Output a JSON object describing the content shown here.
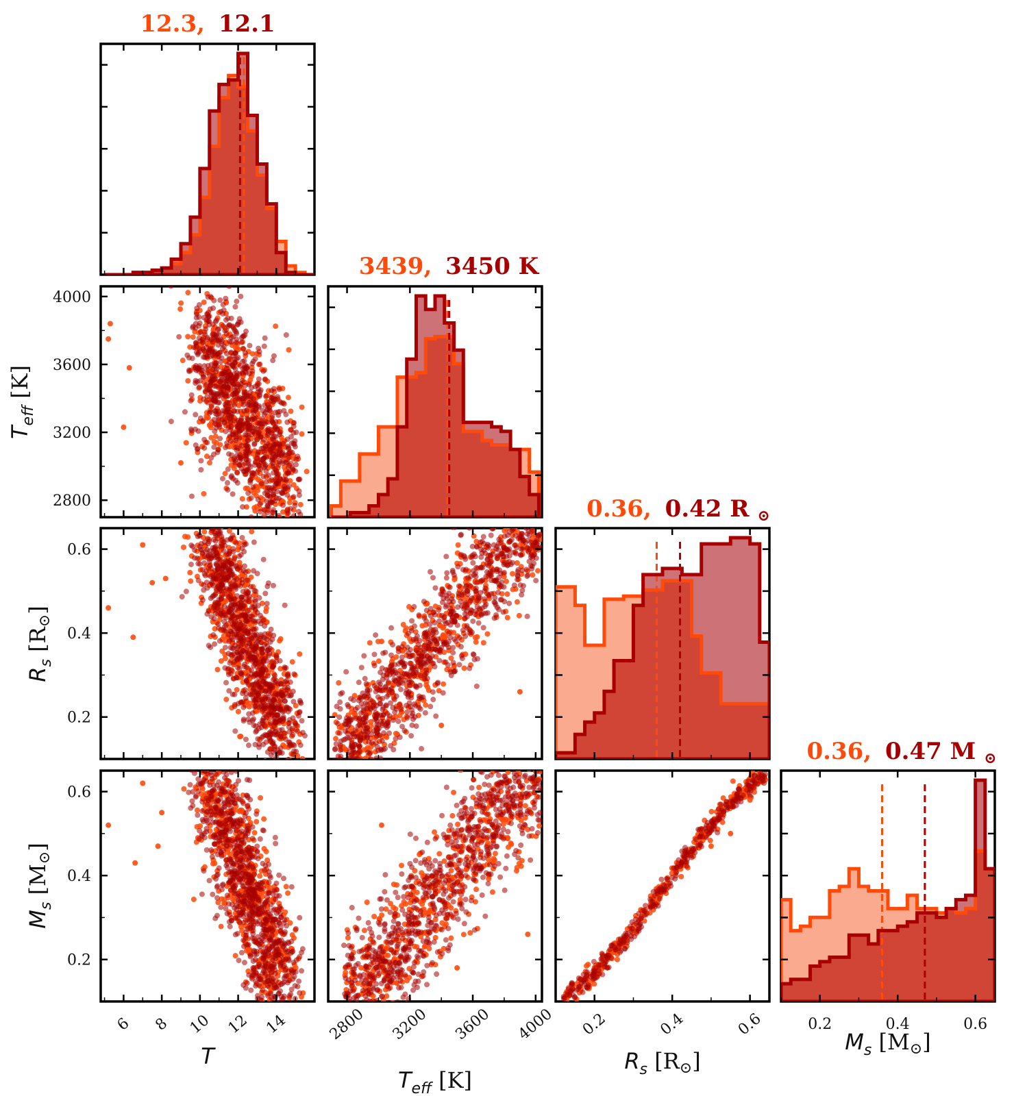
{
  "colors": {
    "series_a": "#ff4a0a",
    "series_a_fill": "#f9a283",
    "series_b": "#a80000",
    "series_b_fill": "#c86368",
    "overlap_fill": "#d04535",
    "frame": "#000000"
  },
  "chart_data": [
    {
      "type": "histogram",
      "panel": "T-hist",
      "title_a": "12.3,",
      "title_b": "12.1",
      "xlim": [
        4.8,
        16.0
      ],
      "xticks": [
        6,
        8,
        10,
        12,
        14
      ],
      "bin_edges": [
        5.0,
        5.5,
        6.0,
        6.5,
        7.0,
        7.5,
        8.0,
        8.5,
        9.0,
        9.5,
        10.0,
        10.5,
        11.0,
        11.5,
        12.0,
        12.5,
        13.0,
        13.5,
        14.0,
        14.5,
        15.0,
        15.5,
        16.0
      ],
      "series": [
        {
          "name": "a",
          "median": 12.3,
          "counts": [
            0,
            0,
            0,
            1,
            1,
            2,
            3,
            5,
            10,
            18,
            35,
            58,
            80,
            90,
            85,
            65,
            45,
            30,
            15,
            4,
            1,
            0
          ]
        },
        {
          "name": "b",
          "median": 12.1,
          "counts": [
            0,
            0,
            0,
            1,
            1,
            2,
            3,
            7,
            14,
            26,
            48,
            74,
            86,
            88,
            100,
            72,
            50,
            32,
            10,
            1,
            0,
            0
          ]
        }
      ]
    },
    {
      "type": "histogram",
      "panel": "Teff-hist",
      "title_a": "3439,",
      "title_b": "3450 K",
      "xlim": [
        2680,
        4040
      ],
      "xticks": [
        2800,
        3200,
        3600,
        4000
      ],
      "bin_edges": [
        2700,
        2760,
        2820,
        2880,
        2940,
        3000,
        3060,
        3120,
        3180,
        3240,
        3300,
        3360,
        3420,
        3480,
        3540,
        3600,
        3660,
        3720,
        3780,
        3840,
        3900,
        3960,
        4020
      ],
      "series": [
        {
          "name": "a",
          "median": 3439,
          "counts": [
            5,
            16,
            16,
            28,
            28,
            40,
            40,
            62,
            62,
            64,
            79,
            80,
            80,
            68,
            38,
            38,
            34,
            32,
            32,
            30,
            30,
            20
          ]
        },
        {
          "name": "b",
          "median": 3450,
          "counts": [
            0,
            0,
            2,
            2,
            5,
            10,
            17,
            40,
            70,
            98,
            92,
            98,
            86,
            74,
            42,
            42,
            42,
            40,
            38,
            30,
            18,
            10
          ]
        }
      ]
    },
    {
      "type": "histogram",
      "panel": "Rs-hist",
      "title_a": "0.36,",
      "title_b": "0.42 R",
      "title_unit": "⊙",
      "xlim": [
        0.1,
        0.65
      ],
      "xticks": [
        0.2,
        0.4,
        0.6
      ],
      "bin_edges": [
        0.1,
        0.125,
        0.15,
        0.175,
        0.2,
        0.225,
        0.25,
        0.275,
        0.3,
        0.325,
        0.35,
        0.375,
        0.4,
        0.425,
        0.45,
        0.475,
        0.5,
        0.525,
        0.55,
        0.575,
        0.6,
        0.625,
        0.65
      ],
      "series": [
        {
          "name": "a",
          "median": 0.36,
          "counts": [
            56,
            56,
            50,
            37,
            37,
            52,
            52,
            53,
            53,
            55,
            55,
            58,
            58,
            58,
            40,
            28,
            28,
            18,
            18,
            18,
            18,
            18
          ]
        },
        {
          "name": "b",
          "median": 0.42,
          "counts": [
            2,
            2,
            8,
            12,
            15,
            22,
            32,
            32,
            50,
            60,
            60,
            62,
            62,
            60,
            60,
            70,
            70,
            70,
            72,
            72,
            70,
            38
          ]
        }
      ]
    },
    {
      "type": "histogram",
      "panel": "Ms-hist",
      "title_a": "0.36,",
      "title_b": "0.47 M",
      "title_unit": "⊙",
      "xlim": [
        0.1,
        0.65
      ],
      "xticks": [
        0.2,
        0.4,
        0.6
      ],
      "bin_edges": [
        0.1,
        0.125,
        0.15,
        0.175,
        0.2,
        0.225,
        0.25,
        0.275,
        0.3,
        0.325,
        0.35,
        0.375,
        0.4,
        0.425,
        0.45,
        0.475,
        0.5,
        0.525,
        0.55,
        0.575,
        0.6,
        0.625,
        0.65
      ],
      "series": [
        {
          "name": "a",
          "median": 0.36,
          "counts": [
            46,
            32,
            34,
            38,
            38,
            50,
            52,
            60,
            52,
            50,
            50,
            42,
            42,
            48,
            42,
            42,
            40,
            42,
            40,
            42,
            68,
            60
          ]
        },
        {
          "name": "b",
          "median": 0.47,
          "counts": [
            8,
            10,
            10,
            16,
            18,
            20,
            20,
            30,
            30,
            26,
            32,
            32,
            34,
            36,
            40,
            40,
            38,
            42,
            46,
            48,
            100,
            60
          ]
        }
      ]
    },
    {
      "type": "scatter",
      "panel": "Teff-vs-T",
      "xlim": [
        4.8,
        16.0
      ],
      "ylim": [
        2700,
        4060
      ],
      "xticks": [
        6,
        8,
        10,
        12,
        14
      ],
      "yticks": [
        2800,
        3200,
        3600,
        4000
      ],
      "relation": {
        "x0": 10.0,
        "y0": 3700,
        "x1": 14.5,
        "y1": 2900,
        "xmin": 7.5,
        "xmax": 15.6,
        "xspread": 1.0,
        "yspread": 230
      },
      "series_a_n": 550,
      "series_b_n": 850,
      "outliers": [
        [
          5.2,
          3750
        ],
        [
          5.3,
          3840
        ],
        [
          6.0,
          3230
        ],
        [
          6.3,
          3580
        ],
        [
          9.0,
          3020
        ]
      ]
    },
    {
      "type": "scatter",
      "panel": "Rs-vs-T",
      "xlim": [
        4.8,
        16.0
      ],
      "ylim": [
        0.1,
        0.65
      ],
      "xticks": [
        6,
        8,
        10,
        12,
        14
      ],
      "yticks": [
        0.2,
        0.4,
        0.6
      ],
      "relation": {
        "x0": 10.5,
        "y0": 0.62,
        "x1": 14.5,
        "y1": 0.13,
        "xmin": 9.0,
        "xmax": 15.5,
        "xspread": 1.1,
        "yspread": 0.06
      },
      "series_a_n": 550,
      "series_b_n": 850,
      "outliers": [
        [
          5.2,
          0.46
        ],
        [
          6.5,
          0.39
        ],
        [
          7.0,
          0.61
        ],
        [
          7.5,
          0.52
        ],
        [
          8.2,
          0.53
        ]
      ]
    },
    {
      "type": "scatter",
      "panel": "Rs-vs-Teff",
      "xlim": [
        2680,
        4040
      ],
      "ylim": [
        0.1,
        0.65
      ],
      "xticks": [
        2800,
        3200,
        3600,
        4000
      ],
      "yticks": [
        0.2,
        0.4,
        0.6
      ],
      "relation": {
        "x0": 2720,
        "y0": 0.125,
        "x1": 4030,
        "y1": 0.645,
        "xmin": 2720,
        "xmax": 4030,
        "xspread": 0,
        "yspread": 0.07
      },
      "series_a_n": 500,
      "series_b_n": 850,
      "outliers": [
        [
          3020,
          0.38
        ],
        [
          3900,
          0.26
        ],
        [
          3400,
          0.18
        ]
      ]
    },
    {
      "type": "scatter",
      "panel": "Ms-vs-T",
      "xlim": [
        4.8,
        16.0
      ],
      "ylim": [
        0.1,
        0.65
      ],
      "xticks": [
        6,
        8,
        10,
        12,
        14
      ],
      "yticks": [
        0.2,
        0.4,
        0.6
      ],
      "relation": {
        "x0": 10.5,
        "y0": 0.63,
        "x1": 14.5,
        "y1": 0.11,
        "xmin": 9.0,
        "xmax": 15.5,
        "xspread": 1.1,
        "yspread": 0.06
      },
      "series_a_n": 550,
      "series_b_n": 850,
      "outliers": [
        [
          5.2,
          0.52
        ],
        [
          6.6,
          0.43
        ],
        [
          7.0,
          0.62
        ],
        [
          7.8,
          0.47
        ],
        [
          8.0,
          0.55
        ]
      ]
    },
    {
      "type": "scatter",
      "panel": "Ms-vs-Teff",
      "xlim": [
        2680,
        4040
      ],
      "ylim": [
        0.1,
        0.65
      ],
      "xticks": [
        2800,
        3200,
        3600,
        4000
      ],
      "yticks": [
        0.2,
        0.4,
        0.6
      ],
      "relation": {
        "x0": 2780,
        "y0": 0.11,
        "x1": 4030,
        "y1": 0.64,
        "xmin": 2780,
        "xmax": 4030,
        "xspread": 0,
        "yspread": 0.08
      },
      "series_a_n": 500,
      "series_b_n": 850,
      "outliers": [
        [
          3020,
          0.52
        ],
        [
          3950,
          0.26
        ],
        [
          3500,
          0.18
        ]
      ]
    },
    {
      "type": "scatter",
      "panel": "Ms-vs-Rs",
      "xlim": [
        0.1,
        0.65
      ],
      "ylim": [
        0.1,
        0.65
      ],
      "xticks": [
        0.2,
        0.4,
        0.6
      ],
      "yticks": [
        0.2,
        0.4,
        0.6
      ],
      "relation": {
        "x0": 0.12,
        "y0": 0.11,
        "x1": 0.64,
        "y1": 0.64,
        "xmin": 0.12,
        "xmax": 0.64,
        "xspread": 0,
        "yspread": 0.012
      },
      "series_a_n": 300,
      "series_b_n": 300,
      "outliers": [
        [
          0.5,
          0.47
        ],
        [
          0.55,
          0.5
        ],
        [
          0.6,
          0.58
        ]
      ]
    }
  ],
  "axis_labels": {
    "T_x": "T",
    "Teff_x_main": "T",
    "Teff_x_sub": "eff",
    "Teff_x_unit": " [K]",
    "Rs_x_main": "R",
    "Rs_x_sub": "s",
    "Rs_x_unit": " [R",
    "Rs_x_sun": "⊙",
    "Rs_x_close": "]",
    "Ms_x_main": "M",
    "Ms_x_sub": "s",
    "Ms_x_unit": " [M",
    "Ms_x_sun": "⊙",
    "Ms_x_close": "]"
  }
}
